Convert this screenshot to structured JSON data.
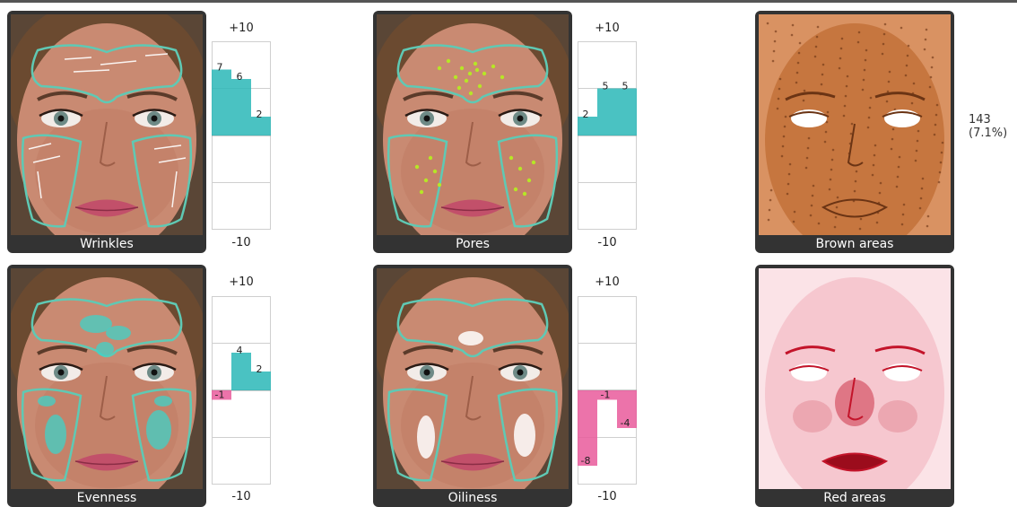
{
  "panels": [
    {
      "id": "wrinkles",
      "caption": "Wrinkles",
      "type": "face",
      "overlay": "wrinkle-lines",
      "overlay_color": "#ffffff"
    },
    {
      "id": "pores",
      "caption": "Pores",
      "type": "face",
      "overlay": "dots",
      "overlay_color": "#b6e626"
    },
    {
      "id": "brown",
      "caption": "Brown areas",
      "type": "brown-map"
    },
    {
      "id": "evenness",
      "caption": "Evenness",
      "type": "face",
      "overlay": "patches",
      "overlay_color": "#3fd1c8"
    },
    {
      "id": "oiliness",
      "caption": "Oiliness",
      "type": "face",
      "overlay": "shine",
      "overlay_color": "#ffffff"
    },
    {
      "id": "red",
      "caption": "Red areas",
      "type": "red-map"
    }
  ],
  "chart_data": [
    {
      "type": "bar",
      "series_of": "Wrinkles",
      "values": [
        7,
        6,
        2
      ],
      "ylim": [
        -10,
        10
      ],
      "top_label": "+10",
      "bottom_label": "-10",
      "color": "#2ab7b7"
    },
    {
      "type": "bar",
      "series_of": "Pores",
      "values": [
        2,
        5,
        5
      ],
      "ylim": [
        -10,
        10
      ],
      "top_label": "+10",
      "bottom_label": "-10",
      "color": "#2ab7b7"
    },
    {
      "type": "bar",
      "series_of": "Evenness",
      "values": [
        -1,
        4,
        2
      ],
      "ylim": [
        -10,
        10
      ],
      "top_label": "+10",
      "bottom_label": "-10",
      "color": "#2ab7b7",
      "neg_color": "#e95b9b"
    },
    {
      "type": "bar",
      "series_of": "Oiliness",
      "values": [
        -8,
        -1,
        -4
      ],
      "ylim": [
        -10,
        10
      ],
      "top_label": "+10",
      "bottom_label": "-10",
      "color": "#2ab7b7",
      "neg_color": "#e95b9b"
    }
  ],
  "brown_areas": {
    "count": "143",
    "percent": "(7.1%)"
  },
  "colors": {
    "zone_outline": "#5fc9b4",
    "positive": "#2ab7b7",
    "negative": "#e95b9b",
    "panel_bg": "#333333"
  }
}
